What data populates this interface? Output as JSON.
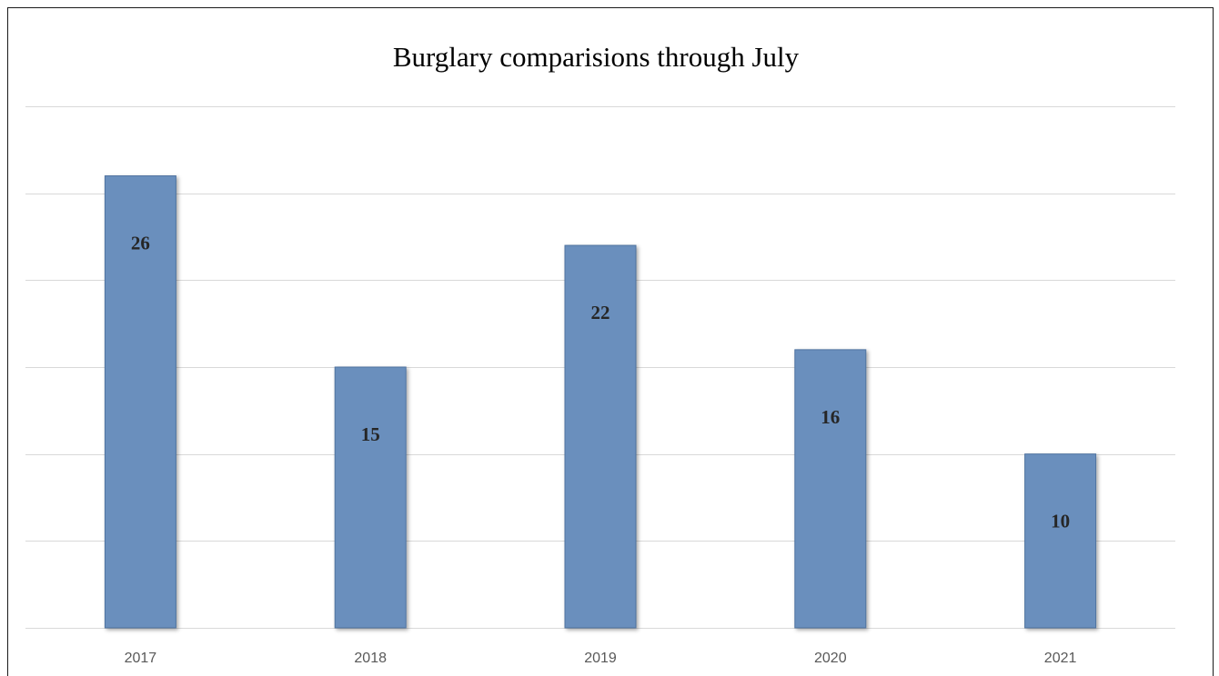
{
  "chart_data": {
    "type": "bar",
    "title": "Burglary comparisions through July",
    "xlabel": "",
    "ylabel": "",
    "categories": [
      "2017",
      "2018",
      "2019",
      "2020",
      "2021"
    ],
    "values": [
      26,
      15,
      22,
      16,
      10
    ],
    "ylim": [
      0,
      30
    ],
    "grid": true,
    "gridlines": [
      0,
      5,
      10,
      15,
      20,
      25,
      30
    ],
    "data_labels": "inside-end",
    "legend": "none",
    "colors": {
      "bar": "#6a8fbd",
      "bar_edge": "#4f73a0",
      "grid": "#d9d9d9",
      "label": "#262626"
    }
  }
}
